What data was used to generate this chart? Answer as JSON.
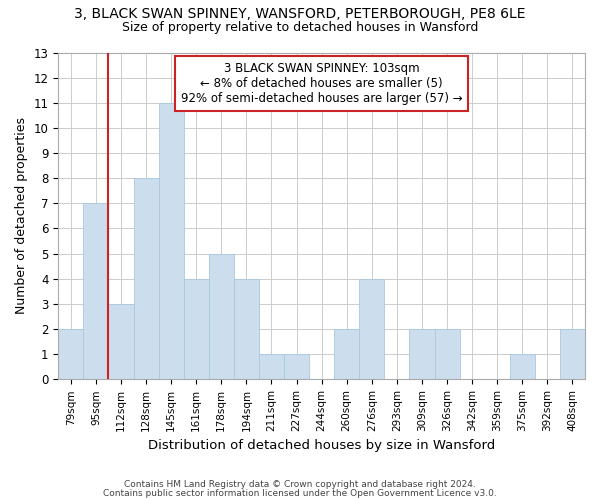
{
  "title_line1": "3, BLACK SWAN SPINNEY, WANSFORD, PETERBOROUGH, PE8 6LE",
  "title_line2": "Size of property relative to detached houses in Wansford",
  "xlabel": "Distribution of detached houses by size in Wansford",
  "ylabel": "Number of detached properties",
  "footer_line1": "Contains HM Land Registry data © Crown copyright and database right 2024.",
  "footer_line2": "Contains public sector information licensed under the Open Government Licence v3.0.",
  "categories": [
    "79sqm",
    "95sqm",
    "112sqm",
    "128sqm",
    "145sqm",
    "161sqm",
    "178sqm",
    "194sqm",
    "211sqm",
    "227sqm",
    "244sqm",
    "260sqm",
    "276sqm",
    "293sqm",
    "309sqm",
    "326sqm",
    "342sqm",
    "359sqm",
    "375sqm",
    "392sqm",
    "408sqm"
  ],
  "values": [
    2,
    7,
    3,
    8,
    11,
    4,
    5,
    4,
    1,
    1,
    0,
    2,
    4,
    0,
    2,
    2,
    0,
    0,
    1,
    0,
    2
  ],
  "bar_color": "#ccdded",
  "bar_edge_color": "#a8c8e0",
  "subject_bin_index": 1,
  "subject_line_color": "#cc2222",
  "annotation_text": "3 BLACK SWAN SPINNEY: 103sqm\n← 8% of detached houses are smaller (5)\n92% of semi-detached houses are larger (57) →",
  "annotation_box_color": "#ffffff",
  "annotation_box_edge": "#cc2222",
  "ylim": [
    0,
    13
  ],
  "yticks": [
    0,
    1,
    2,
    3,
    4,
    5,
    6,
    7,
    8,
    9,
    10,
    11,
    12,
    13
  ],
  "grid_color": "#cccccc",
  "bg_color": "#ffffff"
}
